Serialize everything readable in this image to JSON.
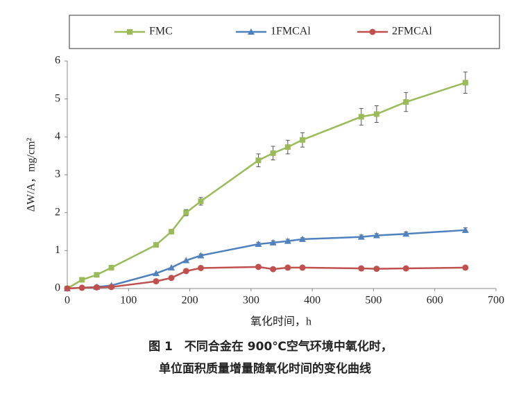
{
  "chart_data": {
    "type": "line",
    "x_label": "氧化时间，h",
    "y_label": "ΔW/A，mg/cm²",
    "caption": [
      "图 1　不同合金在 900℃空气环境中氧化时，",
      "单位面积质量增量随氧化时间的变化曲线"
    ],
    "xlim": [
      0,
      700
    ],
    "xticks": [
      0,
      100,
      200,
      300,
      400,
      500,
      600,
      700
    ],
    "ylim": [
      0,
      6
    ],
    "yticks": [
      0,
      1,
      2,
      3,
      4,
      5,
      6
    ],
    "grid": false,
    "legend": "top",
    "series": [
      {
        "name": "FMC",
        "color": "#9bbb59",
        "marker": "square",
        "x": [
          0,
          24,
          48,
          72,
          145,
          170,
          194,
          218,
          312,
          336,
          360,
          384,
          480,
          505,
          553,
          650
        ],
        "values": [
          0,
          0.23,
          0.36,
          0.55,
          1.15,
          1.5,
          2.0,
          2.3,
          3.38,
          3.57,
          3.73,
          3.92,
          4.53,
          4.6,
          4.92,
          5.43
        ],
        "errors": [
          0,
          0,
          0,
          0,
          0,
          0.06,
          0.08,
          0.1,
          0.17,
          0.18,
          0.18,
          0.19,
          0.22,
          0.22,
          0.25,
          0.28
        ]
      },
      {
        "name": "1FMCAl",
        "color": "#4f81bd",
        "marker": "triangle",
        "x": [
          0,
          48,
          72,
          145,
          170,
          194,
          218,
          312,
          336,
          360,
          384,
          480,
          505,
          553,
          650
        ],
        "values": [
          0,
          0.04,
          0.08,
          0.4,
          0.55,
          0.74,
          0.87,
          1.17,
          1.21,
          1.25,
          1.3,
          1.36,
          1.4,
          1.44,
          1.54
        ],
        "errors": [
          0,
          0,
          0,
          0,
          0,
          0,
          0.04,
          0.05,
          0.05,
          0.05,
          0.04,
          0.05,
          0.05,
          0.05,
          0.06
        ]
      },
      {
        "name": "2FMCAl",
        "color": "#c0504d",
        "marker": "circle",
        "x": [
          0,
          24,
          48,
          72,
          145,
          170,
          194,
          218,
          312,
          336,
          360,
          384,
          480,
          505,
          553,
          650
        ],
        "values": [
          0,
          0.02,
          0.03,
          0.04,
          0.19,
          0.28,
          0.46,
          0.54,
          0.57,
          0.51,
          0.55,
          0.55,
          0.53,
          0.52,
          0.53,
          0.55
        ]
      }
    ]
  }
}
